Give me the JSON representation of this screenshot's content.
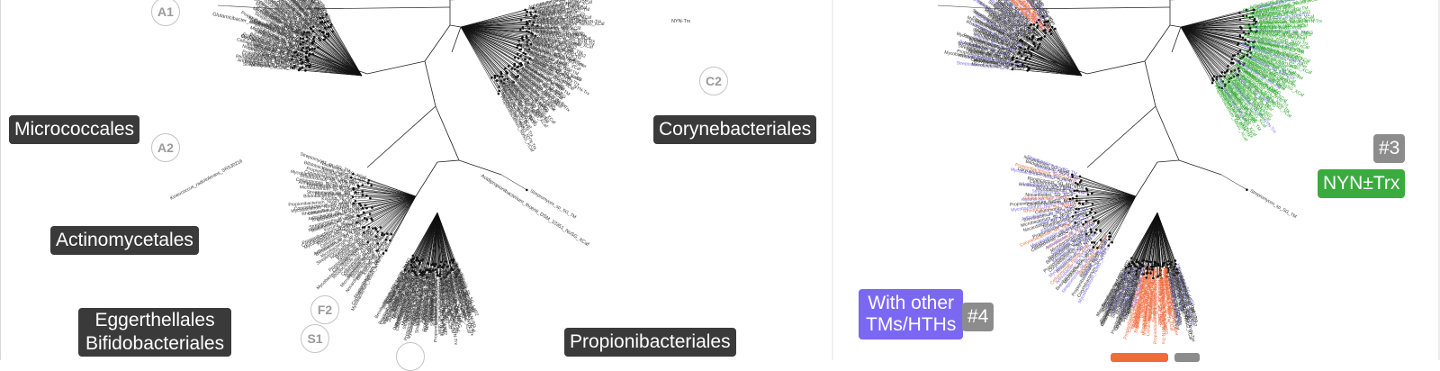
{
  "left_panel": {
    "clade_labels": {
      "micrococcales": "Micrococcales",
      "corynebacteriales": "Corynebacteriales",
      "actinomycetales": "Actinomycetales",
      "eggerthellales_bifidobacteriales": [
        "Eggerthellales",
        "Bifidobacteriales"
      ],
      "propionibacteriales": "Propionibacteriales"
    },
    "subclade_markers": [
      "A1",
      "A2",
      "C2",
      "F2",
      "S1"
    ],
    "readable_leaves": [
      "Glutamicibacter_arilaitensis_Re117_SG_Lal02",
      "Acidipropionibacterium_thoenii_DSM_10351_NoSG_XCaf",
      "Kineococcus_radiotolerans_SRS30216",
      "NYN-Trx"
    ]
  },
  "right_panel": {
    "annotations": {
      "badge_3": "#3",
      "nyn_trx": "NYN±Trx",
      "with_other": [
        "With other",
        "TMs/HTHs"
      ],
      "badge_4": "#4"
    }
  },
  "colors": {
    "label_bg": "#3a3a3a",
    "nyn_trx_green": "#2aa52a",
    "tm_hth_purple": "#7b6cf0",
    "orange": "#f06a3c",
    "grey_badge": "#8c8c8c"
  }
}
